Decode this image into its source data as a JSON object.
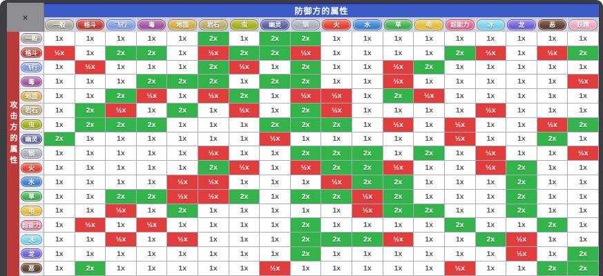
{
  "window": {
    "close_label": "×"
  },
  "header": {
    "defender_axis_title": "防御方的属性",
    "attacker_axis_title": "攻击方的属性"
  },
  "legend": {
    "display": {
      "1": "1x",
      "2": "2x",
      "0.5": "½x"
    },
    "colors": {
      "1": "#ffffff",
      "2": "#33b44a",
      "0.5": "#e23d3d"
    }
  },
  "types": [
    {
      "name": "一般",
      "color": "#a8a49c",
      "light": "#d8d4cc"
    },
    {
      "name": "格斗",
      "color": "#bf3a2e",
      "light": "#e0766a"
    },
    {
      "name": "飞行",
      "color": "#7e9de4",
      "light": "#b4c6f0"
    },
    {
      "name": "毒",
      "color": "#a2539e",
      "light": "#c98ac6"
    },
    {
      "name": "地面",
      "color": "#d4a942",
      "light": "#e8cc84"
    },
    {
      "name": "岩石",
      "color": "#bba767",
      "light": "#d8cba0"
    },
    {
      "name": "虫",
      "color": "#a2ad1e",
      "light": "#c8d05e"
    },
    {
      "name": "幽灵",
      "color": "#5b5ea6",
      "light": "#9093c8"
    },
    {
      "name": "钢",
      "color": "#a9a9bb",
      "light": "#d0d0dc"
    },
    {
      "name": "火",
      "color": "#e2412f",
      "light": "#f08070"
    },
    {
      "name": "水",
      "color": "#3b82d6",
      "light": "#84b4ea"
    },
    {
      "name": "草",
      "color": "#3eb04e",
      "light": "#8ed494"
    },
    {
      "name": "电",
      "color": "#e5bd3a",
      "light": "#f2dc84"
    },
    {
      "name": "超能力",
      "color": "#ea5f88",
      "light": "#f49cb6"
    },
    {
      "name": "冰",
      "color": "#76d0e8",
      "light": "#b4e8f4"
    },
    {
      "name": "龙",
      "color": "#7060d8",
      "light": "#a49af0"
    },
    {
      "name": "恶",
      "color": "#5f4236",
      "light": "#96705e"
    },
    {
      "name": "妖精",
      "color": "#efa3c2",
      "light": "#f8cede"
    }
  ],
  "chart_data": {
    "type": "heatmap",
    "title": "防御方的属性",
    "row_axis_label": "攻击方的属性",
    "columns": [
      "一般",
      "格斗",
      "飞行",
      "毒",
      "地面",
      "岩石",
      "虫",
      "幽灵",
      "钢",
      "火",
      "水",
      "草",
      "电",
      "超能力",
      "冰",
      "龙",
      "恶",
      "妖精"
    ],
    "rows": [
      "一般",
      "格斗",
      "飞行",
      "毒",
      "地面",
      "岩石",
      "虫",
      "幽灵",
      "钢",
      "火",
      "水",
      "草",
      "电",
      "超能力",
      "冰",
      "龙",
      "恶"
    ],
    "matrix": [
      [
        1,
        1,
        1,
        1,
        1,
        2,
        1,
        2,
        2,
        1,
        1,
        1,
        1,
        1,
        1,
        1,
        1,
        1
      ],
      [
        0.5,
        1,
        2,
        2,
        1,
        0.5,
        2,
        2,
        0.5,
        1,
        1,
        1,
        1,
        2,
        0.5,
        1,
        0.5,
        2
      ],
      [
        1,
        0.5,
        1,
        1,
        1,
        2,
        0.5,
        1,
        2,
        1,
        1,
        0.5,
        2,
        1,
        1,
        1,
        1,
        1
      ],
      [
        1,
        1,
        1,
        2,
        2,
        2,
        1,
        2,
        2,
        1,
        1,
        0.5,
        1,
        1,
        1,
        1,
        1,
        0.5
      ],
      [
        1,
        1,
        2,
        0.5,
        1,
        0.5,
        2,
        1,
        0.5,
        0.5,
        1,
        2,
        0.5,
        1,
        1,
        1,
        1,
        1
      ],
      [
        1,
        2,
        0.5,
        1,
        2,
        1,
        0.5,
        1,
        2,
        0.5,
        1,
        1,
        1,
        1,
        0.5,
        1,
        1,
        1
      ],
      [
        1,
        2,
        2,
        2,
        1,
        1,
        1,
        2,
        2,
        2,
        1,
        0.5,
        1,
        0.5,
        1,
        1,
        0.5,
        2
      ],
      [
        2,
        1,
        1,
        1,
        1,
        1,
        1,
        0.5,
        1,
        1,
        1,
        1,
        1,
        0.5,
        1,
        1,
        2,
        1
      ],
      [
        1,
        1,
        1,
        1,
        1,
        0.5,
        1,
        1,
        2,
        2,
        2,
        1,
        2,
        1,
        0.5,
        1,
        1,
        0.5
      ],
      [
        1,
        1,
        1,
        1,
        1,
        2,
        0.5,
        1,
        0.5,
        2,
        2,
        0.5,
        1,
        1,
        0.5,
        2,
        1,
        1
      ],
      [
        1,
        1,
        1,
        1,
        0.5,
        0.5,
        1,
        1,
        1,
        0.5,
        2,
        2,
        1,
        1,
        1,
        2,
        1,
        1
      ],
      [
        1,
        1,
        2,
        2,
        0.5,
        0.5,
        2,
        1,
        2,
        2,
        0.5,
        2,
        1,
        1,
        1,
        2,
        1,
        1
      ],
      [
        1,
        1,
        0.5,
        1,
        2,
        1,
        1,
        1,
        1,
        1,
        0.5,
        2,
        2,
        1,
        1,
        2,
        1,
        1
      ],
      [
        1,
        0.5,
        1,
        0.5,
        1,
        1,
        1,
        1,
        2,
        1,
        1,
        1,
        1,
        2,
        1,
        1,
        2,
        1
      ],
      [
        1,
        1,
        0.5,
        1,
        0.5,
        1,
        1,
        1,
        2,
        2,
        2,
        0.5,
        1,
        1,
        2,
        0.5,
        1,
        1
      ],
      [
        1,
        1,
        1,
        1,
        1,
        1,
        1,
        1,
        2,
        1,
        1,
        1,
        1,
        1,
        1,
        0.5,
        1,
        2
      ],
      [
        1,
        2,
        1,
        1,
        1,
        1,
        1,
        0.5,
        1,
        1,
        1,
        1,
        1,
        0.5,
        1,
        1,
        2,
        2
      ]
    ]
  }
}
